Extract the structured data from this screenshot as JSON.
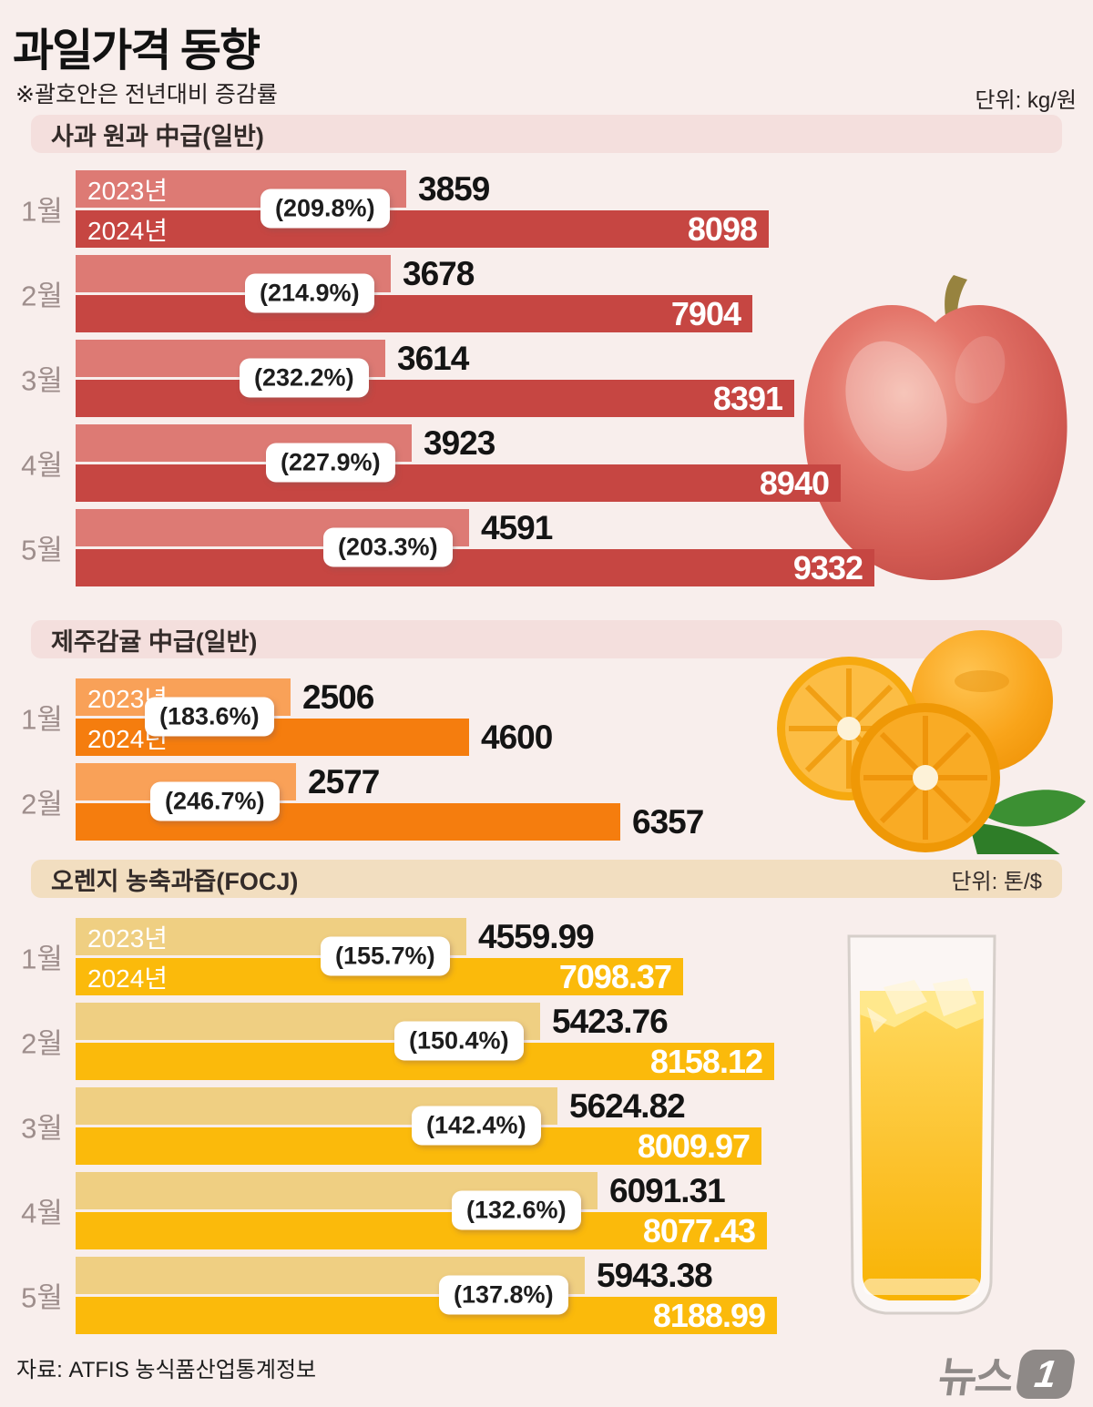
{
  "header": {
    "title": "과일가격 동향",
    "subtitle": "※괄호안은 전년대비 증감률",
    "unit_label": "단위: kg/원"
  },
  "palette": {
    "background": "#f8eeec",
    "strip_pink": "#f4dfdd",
    "strip_beige": "#f2dec0",
    "month_label": "#9e8e8c",
    "value_ink": "#141414",
    "logo_gray": "#8e8987"
  },
  "chart_data": [
    {
      "id": "apple",
      "type": "bar",
      "title": "사과 원과 中급(일반)",
      "unit": "단위: kg/원",
      "categories": [
        "1월",
        "2월",
        "3월",
        "4월",
        "5월"
      ],
      "series": [
        {
          "name": "2023년",
          "color": "#dd7a74",
          "values": [
            3859,
            3678,
            3614,
            3923,
            4591
          ]
        },
        {
          "name": "2024년",
          "color": "#c64642",
          "values": [
            8098,
            7904,
            8391,
            8940,
            9332
          ]
        }
      ],
      "change_pct": [
        "(209.8%)",
        "(214.9%)",
        "(232.2%)",
        "(227.9%)",
        "(203.3%)"
      ],
      "value_styles": [
        "outside-dark",
        "inside-white"
      ],
      "legend_position": "inside-first-bars",
      "grid": false
    },
    {
      "id": "tangerine",
      "type": "bar",
      "title": "제주감귤 中급(일반)",
      "unit": "단위: kg/원",
      "categories": [
        "1월",
        "2월"
      ],
      "series": [
        {
          "name": "2023년",
          "color": "#f9a158",
          "values": [
            2506,
            2577
          ]
        },
        {
          "name": "2024년",
          "color": "#f57d0e",
          "values": [
            4600,
            6357
          ]
        }
      ],
      "change_pct": [
        "(183.6%)",
        "(246.7%)"
      ],
      "value_styles": [
        "outside-dark",
        "outside-dark"
      ],
      "legend_position": "inside-first-bars",
      "grid": false
    },
    {
      "id": "focj",
      "type": "bar",
      "title": "오렌지 농축과즙(FOCJ)",
      "unit": "단위: 톤/$",
      "categories": [
        "1월",
        "2월",
        "3월",
        "4월",
        "5월"
      ],
      "series": [
        {
          "name": "2023년",
          "color": "#efcf82",
          "values": [
            4559.99,
            5423.76,
            5624.82,
            6091.31,
            5943.38
          ]
        },
        {
          "name": "2024년",
          "color": "#fbba0b",
          "values": [
            7098.37,
            8158.12,
            8009.97,
            8077.43,
            8188.99
          ]
        }
      ],
      "change_pct": [
        "(155.7%)",
        "(150.4%)",
        "(142.4%)",
        "(132.6%)",
        "(137.8%)"
      ],
      "value_styles": [
        "outside-dark",
        "inside-white"
      ],
      "legend_position": "inside-first-bars",
      "grid": false
    }
  ],
  "footer": {
    "source": "자료:  ATFIS 농식품산업통계정보",
    "logo_word": "뉴스",
    "logo_digit": "1"
  }
}
